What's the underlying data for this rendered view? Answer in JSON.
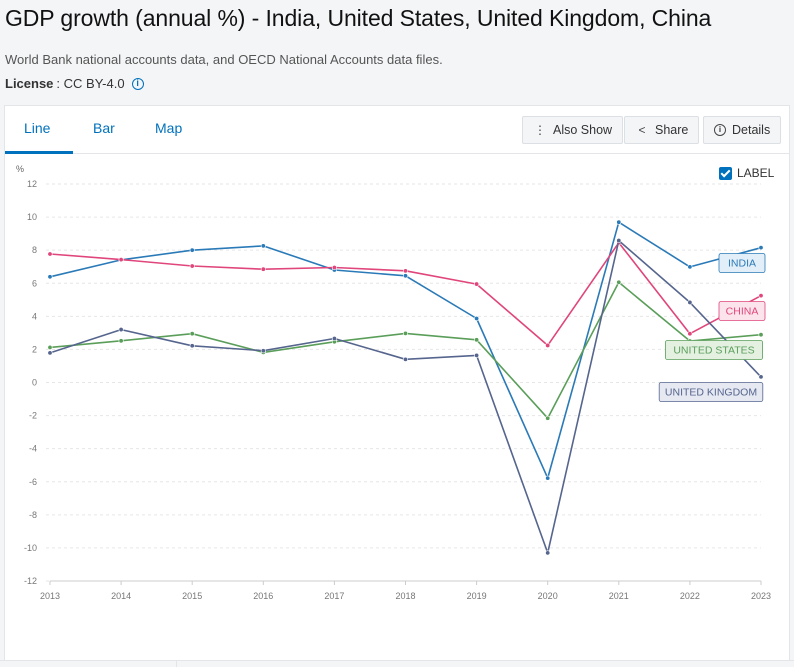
{
  "page": {
    "title": "GDP growth (annual %) - India, United States, United Kingdom, China",
    "source": "World Bank national accounts data, and OECD National Accounts data files.",
    "license_label": "License",
    "license_value": ": CC BY-4.0",
    "info_icon": "info-icon"
  },
  "tabs": [
    {
      "label": "Line",
      "active": true
    },
    {
      "label": "Bar",
      "active": false
    },
    {
      "label": "Map",
      "active": false
    }
  ],
  "toolbar": {
    "also_show_label": "Also Show",
    "also_show_icon": "vertical-ellipsis-icon",
    "share_label": "Share",
    "share_icon": "share-icon",
    "details_label": "Details",
    "details_icon": "info-icon"
  },
  "label_toggle": {
    "text": "LABEL",
    "checked": true
  },
  "chart_data": {
    "type": "line",
    "ylabel": "%",
    "ylim": [
      -12,
      12
    ],
    "yticks": [
      12,
      10,
      8,
      6,
      4,
      2,
      0,
      -2,
      -4,
      -6,
      -8,
      -10,
      -12
    ],
    "x": [
      "2013",
      "2014",
      "2015",
      "2016",
      "2017",
      "2018",
      "2019",
      "2020",
      "2021",
      "2022",
      "2023"
    ],
    "grid": true,
    "series": [
      {
        "name": "INDIA",
        "color": "#2a7ab8",
        "label_bg": "#e3eff8",
        "values": [
          6.39,
          7.41,
          8.0,
          8.26,
          6.8,
          6.45,
          3.87,
          -5.78,
          9.69,
          6.99,
          8.15
        ]
      },
      {
        "name": "CHINA",
        "color": "#e0457b",
        "label_bg": "#fbe4ec",
        "values": [
          7.77,
          7.43,
          7.04,
          6.85,
          6.95,
          6.75,
          5.95,
          2.24,
          8.45,
          2.95,
          5.25
        ]
      },
      {
        "name": "UNITED STATES",
        "color": "#5a9e5a",
        "label_bg": "#e4f1e1",
        "values": [
          2.12,
          2.52,
          2.95,
          1.82,
          2.46,
          2.97,
          2.58,
          -2.16,
          6.06,
          2.51,
          2.89
        ]
      },
      {
        "name": "UNITED KINGDOM",
        "color": "#56658e",
        "label_bg": "#e6e9f2",
        "values": [
          1.79,
          3.2,
          2.22,
          1.92,
          2.66,
          1.4,
          1.64,
          -10.3,
          8.58,
          4.84,
          0.34
        ]
      }
    ]
  }
}
